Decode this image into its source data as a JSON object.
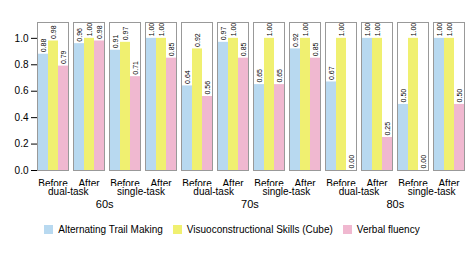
{
  "chart_data": {
    "type": "bar",
    "categories": [
      "Before",
      "After",
      "Before",
      "After",
      "Before",
      "After",
      "Before",
      "After",
      "Before",
      "After",
      "Before",
      "After"
    ],
    "category_groups": [
      [
        "dual-task",
        "single-task",
        "dual-task",
        "single-task",
        "dual-task",
        "single-task"
      ],
      [
        "60s",
        "70s",
        "80s"
      ]
    ],
    "series": [
      {
        "name": "Alternating Trail Making",
        "color": "#b8d9f0",
        "values": [
          0.88,
          0.96,
          0.91,
          1.0,
          0.64,
          0.97,
          0.65,
          0.92,
          0.67,
          1.0,
          0.5,
          1.0
        ],
        "value_labels": [
          "0.88",
          "0.96",
          "0.91",
          "1.00",
          "0.64",
          "0.97",
          "0.65",
          "0.92",
          "0.67",
          "1.00",
          "0.50",
          "1.00"
        ]
      },
      {
        "name": "Visuoconstructional Skills (Cube)",
        "color": "#f0f070",
        "values": [
          0.98,
          1.0,
          0.97,
          1.0,
          0.92,
          1.0,
          1.0,
          1.0,
          1.0,
          1.0,
          1.0,
          1.0
        ],
        "value_labels": [
          "0.98",
          "1.00",
          "0.97",
          "1.00",
          "0.92",
          "1.00",
          "1.00",
          "1.00",
          "1.00",
          "1.00",
          "1.00",
          "1.00"
        ]
      },
      {
        "name": "Verbal fluency",
        "color": "#f0b8d0",
        "values": [
          0.79,
          0.98,
          0.71,
          0.85,
          0.56,
          0.85,
          0.65,
          0.85,
          0.0,
          0.25,
          0.0,
          0.5
        ],
        "value_labels": [
          "0.79",
          "0.98",
          "0.71",
          "0.85",
          "0.56",
          "0.85",
          "0.65",
          "0.85",
          "0.00",
          "0.25",
          "0.00",
          "0.50"
        ]
      }
    ],
    "ylim": [
      0.0,
      1.12
    ],
    "yticks": [
      {
        "value": 0,
        "label": "0.0"
      },
      0.2,
      0.4,
      0.6,
      0.8,
      {
        "value": 1,
        "label": "1.0"
      }
    ],
    "data_labels": true,
    "grid": false,
    "legend": "bottom"
  }
}
